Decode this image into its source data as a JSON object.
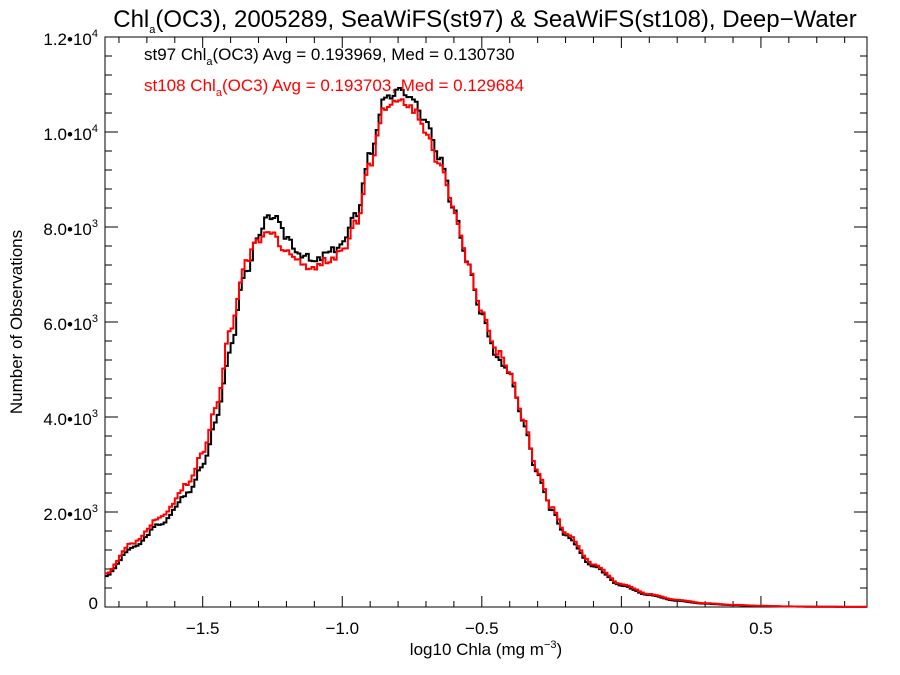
{
  "chart_data": {
    "type": "line",
    "title": {
      "main": "Chl",
      "sub": "a",
      "rest": "(OC3), 2005289, SeaWiFS(st97) & SeaWiFS(st108), Deep−Water"
    },
    "xlabel": {
      "main": "log10 Chla (mg m",
      "sup": "−3",
      "close": ")"
    },
    "ylabel": "Number of Observations",
    "xlim": [
      -1.85,
      0.88
    ],
    "ylim": [
      0,
      12000
    ],
    "x_ticks": [
      {
        "value": -1.5,
        "label": "−1.5"
      },
      {
        "value": -1.0,
        "label": "−1.0"
      },
      {
        "value": -0.5,
        "label": "−0.5"
      },
      {
        "value": 0.0,
        "label": "0.0"
      },
      {
        "value": 0.5,
        "label": "0.5"
      }
    ],
    "y_ticks": [
      {
        "value": 0,
        "mant": "0",
        "exp": ""
      },
      {
        "value": 2000,
        "mant": "2.0•10",
        "exp": "3"
      },
      {
        "value": 4000,
        "mant": "4.0•10",
        "exp": "3"
      },
      {
        "value": 6000,
        "mant": "6.0•10",
        "exp": "3"
      },
      {
        "value": 8000,
        "mant": "8.0•10",
        "exp": "3"
      },
      {
        "value": 10000,
        "mant": "1.0•10",
        "exp": "4"
      },
      {
        "value": 12000,
        "mant": "1.2•10",
        "exp": "4"
      }
    ],
    "grid": false,
    "legend_position": "top-left",
    "series": [
      {
        "name": "st97",
        "color": "#000000",
        "legend": {
          "pre": "st97 Chl",
          "sub": "a",
          "post": "(OC3) Avg = 0.193969, Med = 0.130730"
        },
        "x": [
          -1.85,
          -1.75,
          -1.65,
          -1.55,
          -1.5,
          -1.45,
          -1.4,
          -1.35,
          -1.3,
          -1.27,
          -1.25,
          -1.2,
          -1.15,
          -1.1,
          -1.05,
          -1.0,
          -0.95,
          -0.9,
          -0.85,
          -0.8,
          -0.78,
          -0.75,
          -0.7,
          -0.65,
          -0.6,
          -0.55,
          -0.5,
          -0.45,
          -0.4,
          -0.35,
          -0.3,
          -0.25,
          -0.2,
          -0.1,
          0.0,
          0.1,
          0.2,
          0.3,
          0.4,
          0.5,
          0.6,
          0.7,
          0.88
        ],
        "y": [
          650,
          1250,
          1750,
          2400,
          3000,
          3950,
          5450,
          7000,
          7750,
          8150,
          8250,
          7800,
          7450,
          7250,
          7450,
          7650,
          8250,
          9550,
          10650,
          10850,
          10850,
          10700,
          10200,
          9400,
          8400,
          7300,
          6200,
          5350,
          4950,
          3850,
          2800,
          2050,
          1500,
          850,
          450,
          250,
          130,
          70,
          40,
          20,
          10,
          5,
          2
        ]
      },
      {
        "name": "st108",
        "color": "#ff0000",
        "legend": {
          "pre": "st108 Chl",
          "sub": "a",
          "post": "(OC3) Avg = 0.193703, Med = 0.129684"
        },
        "x": [
          -1.85,
          -1.75,
          -1.65,
          -1.55,
          -1.5,
          -1.45,
          -1.4,
          -1.35,
          -1.3,
          -1.27,
          -1.25,
          -1.2,
          -1.15,
          -1.1,
          -1.05,
          -1.0,
          -0.95,
          -0.9,
          -0.85,
          -0.8,
          -0.78,
          -0.75,
          -0.7,
          -0.65,
          -0.6,
          -0.55,
          -0.5,
          -0.45,
          -0.4,
          -0.35,
          -0.3,
          -0.25,
          -0.2,
          -0.1,
          0.0,
          0.1,
          0.2,
          0.3,
          0.4,
          0.5,
          0.6,
          0.7,
          0.88
        ],
        "y": [
          700,
          1350,
          1900,
          2600,
          3250,
          4250,
          5800,
          7200,
          7700,
          7850,
          7850,
          7500,
          7250,
          7150,
          7300,
          7500,
          8100,
          9350,
          10450,
          10650,
          10650,
          10500,
          10050,
          9300,
          8350,
          7300,
          6250,
          5400,
          5000,
          3900,
          2850,
          2100,
          1550,
          900,
          480,
          270,
          150,
          80,
          45,
          25,
          12,
          6,
          2
        ]
      }
    ]
  }
}
